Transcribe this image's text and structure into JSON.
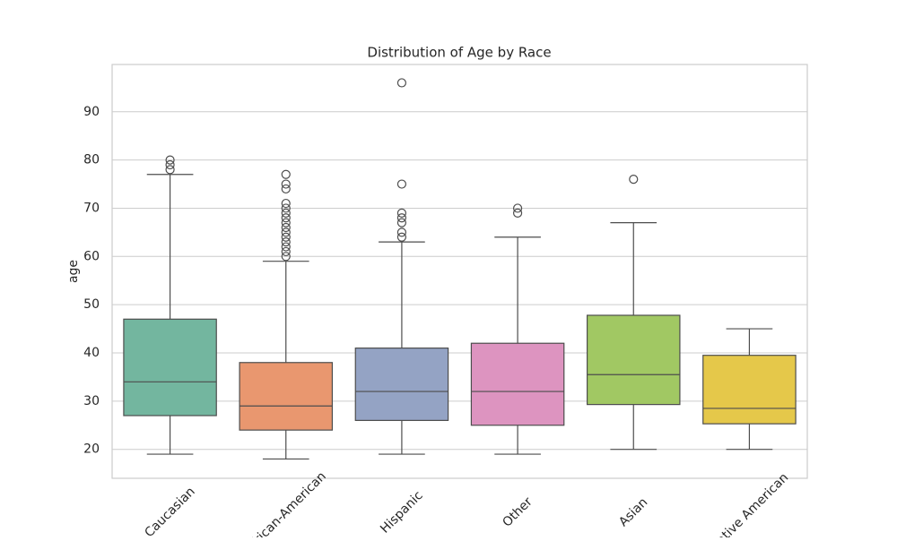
{
  "chart_data": {
    "type": "box",
    "title": "Distribution of Age by Race",
    "y_label": "age",
    "categories": [
      "Caucasian",
      "African-American",
      "Hispanic",
      "Other",
      "Asian",
      "Native American"
    ],
    "boxes": [
      {
        "color": "#73b69f",
        "whislo": 19,
        "q1": 27,
        "med": 34,
        "q3": 47,
        "whishi": 77,
        "fliers": [
          78,
          79,
          80
        ]
      },
      {
        "color": "#e9976f",
        "whislo": 18,
        "q1": 24,
        "med": 29,
        "q3": 38,
        "whishi": 59,
        "fliers": [
          60,
          61,
          62,
          63,
          64,
          65,
          66,
          67,
          68,
          69,
          70,
          71,
          74,
          75,
          77
        ]
      },
      {
        "color": "#94a3c4",
        "whislo": 19,
        "q1": 26,
        "med": 32,
        "q3": 41,
        "whishi": 63,
        "fliers": [
          64,
          65,
          67,
          68,
          69,
          75,
          96
        ]
      },
      {
        "color": "#dd94c0",
        "whislo": 19,
        "q1": 25,
        "med": 32,
        "q3": 42,
        "whishi": 64,
        "fliers": [
          69,
          70
        ]
      },
      {
        "color": "#a1c863",
        "whislo": 20,
        "q1": 29.3,
        "med": 35.5,
        "q3": 47.8,
        "whishi": 67,
        "fliers": [
          76
        ]
      },
      {
        "color": "#e5c84a",
        "whislo": 20,
        "q1": 25.3,
        "med": 28.5,
        "q3": 39.5,
        "whishi": 45,
        "fliers": []
      }
    ],
    "ylim": [
      14,
      99.8
    ],
    "yticks": [
      20,
      30,
      40,
      50,
      60,
      70,
      80,
      90
    ],
    "grid": true
  }
}
